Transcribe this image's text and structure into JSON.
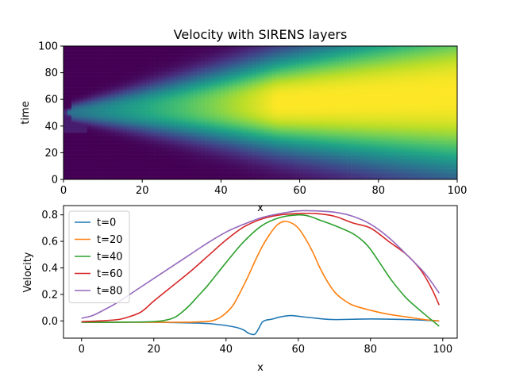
{
  "chart_data": [
    {
      "type": "heatmap",
      "title": "Velocity with SIRENS layers",
      "xlabel": "x",
      "ylabel": "time",
      "xlim": [
        0,
        100
      ],
      "ylim": [
        0,
        100
      ],
      "xticks": [
        "0",
        "20",
        "40",
        "60",
        "80",
        "100"
      ],
      "yticks": [
        "0",
        "20",
        "40",
        "60",
        "80",
        "100"
      ],
      "colormap": "viridis",
      "value_range": [
        0,
        0.85
      ],
      "grid": false
    },
    {
      "type": "line",
      "title": "",
      "xlabel": "x",
      "ylabel": "Velocity",
      "xlim": [
        -5,
        104
      ],
      "ylim": [
        -0.13,
        0.87
      ],
      "xticks": [
        "0",
        "20",
        "40",
        "60",
        "80",
        "100"
      ],
      "yticks": [
        "0.0",
        "0.2",
        "0.4",
        "0.6",
        "0.8"
      ],
      "legend_position": "top-left",
      "grid": false,
      "series": [
        {
          "name": "t=0",
          "color": "#1f77b4",
          "x": [
            0,
            10,
            20,
            30,
            35,
            40,
            43,
            45,
            46,
            47,
            48,
            49,
            50,
            51,
            52,
            53,
            55,
            58,
            60,
            65,
            70,
            80,
            90,
            95,
            99
          ],
          "y": [
            -0.01,
            -0.01,
            -0.01,
            -0.015,
            -0.02,
            -0.035,
            -0.05,
            -0.07,
            -0.09,
            -0.1,
            -0.1,
            -0.06,
            -0.01,
            0.005,
            0.01,
            0.015,
            0.03,
            0.04,
            0.035,
            0.02,
            0.01,
            0.015,
            0.01,
            0.005,
            0.0
          ]
        },
        {
          "name": "t=20",
          "color": "#ff7f0e",
          "x": [
            0,
            10,
            20,
            30,
            34,
            36,
            38,
            40,
            42,
            44,
            46,
            48,
            50,
            52,
            54,
            56,
            58,
            60,
            62,
            64,
            66,
            68,
            70,
            72,
            75,
            80,
            85,
            90,
            95,
            99
          ],
          "y": [
            -0.01,
            -0.01,
            -0.01,
            -0.01,
            -0.005,
            0.0,
            0.02,
            0.06,
            0.12,
            0.22,
            0.33,
            0.45,
            0.56,
            0.65,
            0.72,
            0.75,
            0.74,
            0.7,
            0.62,
            0.52,
            0.4,
            0.3,
            0.22,
            0.17,
            0.12,
            0.08,
            0.05,
            0.03,
            0.01,
            0.0
          ]
        },
        {
          "name": "t=40",
          "color": "#2ca02c",
          "x": [
            0,
            10,
            20,
            24,
            26,
            28,
            30,
            32,
            35,
            40,
            45,
            50,
            55,
            60,
            63,
            66,
            70,
            75,
            78,
            80,
            83,
            86,
            90,
            95,
            99
          ],
          "y": [
            -0.01,
            -0.01,
            -0.005,
            0.01,
            0.03,
            0.07,
            0.12,
            0.18,
            0.27,
            0.44,
            0.6,
            0.72,
            0.78,
            0.8,
            0.79,
            0.76,
            0.72,
            0.66,
            0.6,
            0.54,
            0.42,
            0.3,
            0.17,
            0.05,
            -0.04
          ]
        },
        {
          "name": "t=60",
          "color": "#d62728",
          "x": [
            0,
            5,
            10,
            13,
            16,
            18,
            20,
            25,
            30,
            35,
            40,
            45,
            50,
            55,
            60,
            65,
            70,
            75,
            80,
            85,
            90,
            94,
            97,
            99
          ],
          "y": [
            -0.005,
            0.0,
            0.01,
            0.03,
            0.06,
            0.1,
            0.15,
            0.26,
            0.37,
            0.49,
            0.61,
            0.71,
            0.77,
            0.8,
            0.81,
            0.81,
            0.79,
            0.74,
            0.7,
            0.6,
            0.5,
            0.38,
            0.24,
            0.12
          ]
        },
        {
          "name": "t=80",
          "color": "#9467bd",
          "x": [
            0,
            3,
            6,
            10,
            15,
            20,
            25,
            30,
            35,
            40,
            45,
            50,
            55,
            60,
            65,
            70,
            75,
            80,
            85,
            90,
            95,
            99
          ],
          "y": [
            0.02,
            0.04,
            0.08,
            0.14,
            0.23,
            0.32,
            0.41,
            0.5,
            0.59,
            0.67,
            0.73,
            0.78,
            0.81,
            0.83,
            0.83,
            0.82,
            0.79,
            0.73,
            0.63,
            0.5,
            0.36,
            0.21
          ]
        }
      ]
    }
  ]
}
